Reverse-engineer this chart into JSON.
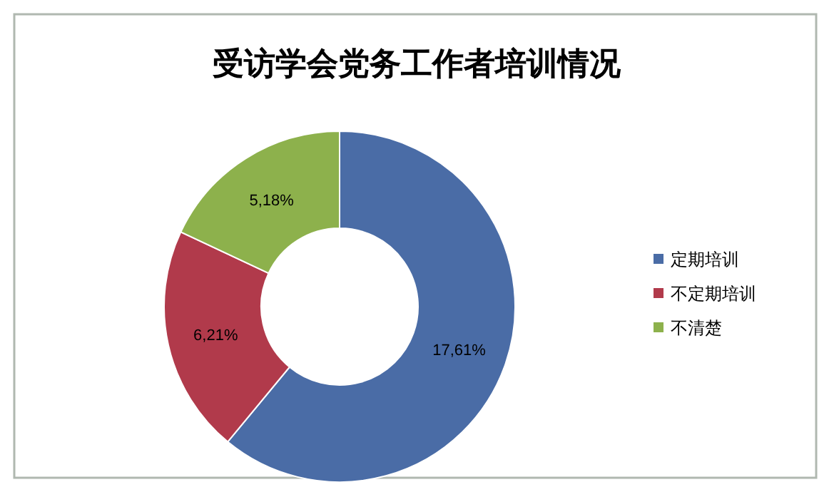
{
  "chart_data": {
    "type": "donut",
    "title": "受访学会党务工作者培训情况",
    "categories": [
      "定期培训",
      "不定期培训",
      "不清楚"
    ],
    "values": [
      61,
      21,
      18
    ],
    "colors": [
      "#4a6ca6",
      "#b13a4b",
      "#8db14c"
    ],
    "annotations": [
      {
        "text": "17,61%",
        "x": "定期培训"
      },
      {
        "text": "6,21%",
        "x": "不定期培训"
      },
      {
        "text": "5,18%",
        "x": "不清楚"
      }
    ],
    "legend": "right"
  }
}
